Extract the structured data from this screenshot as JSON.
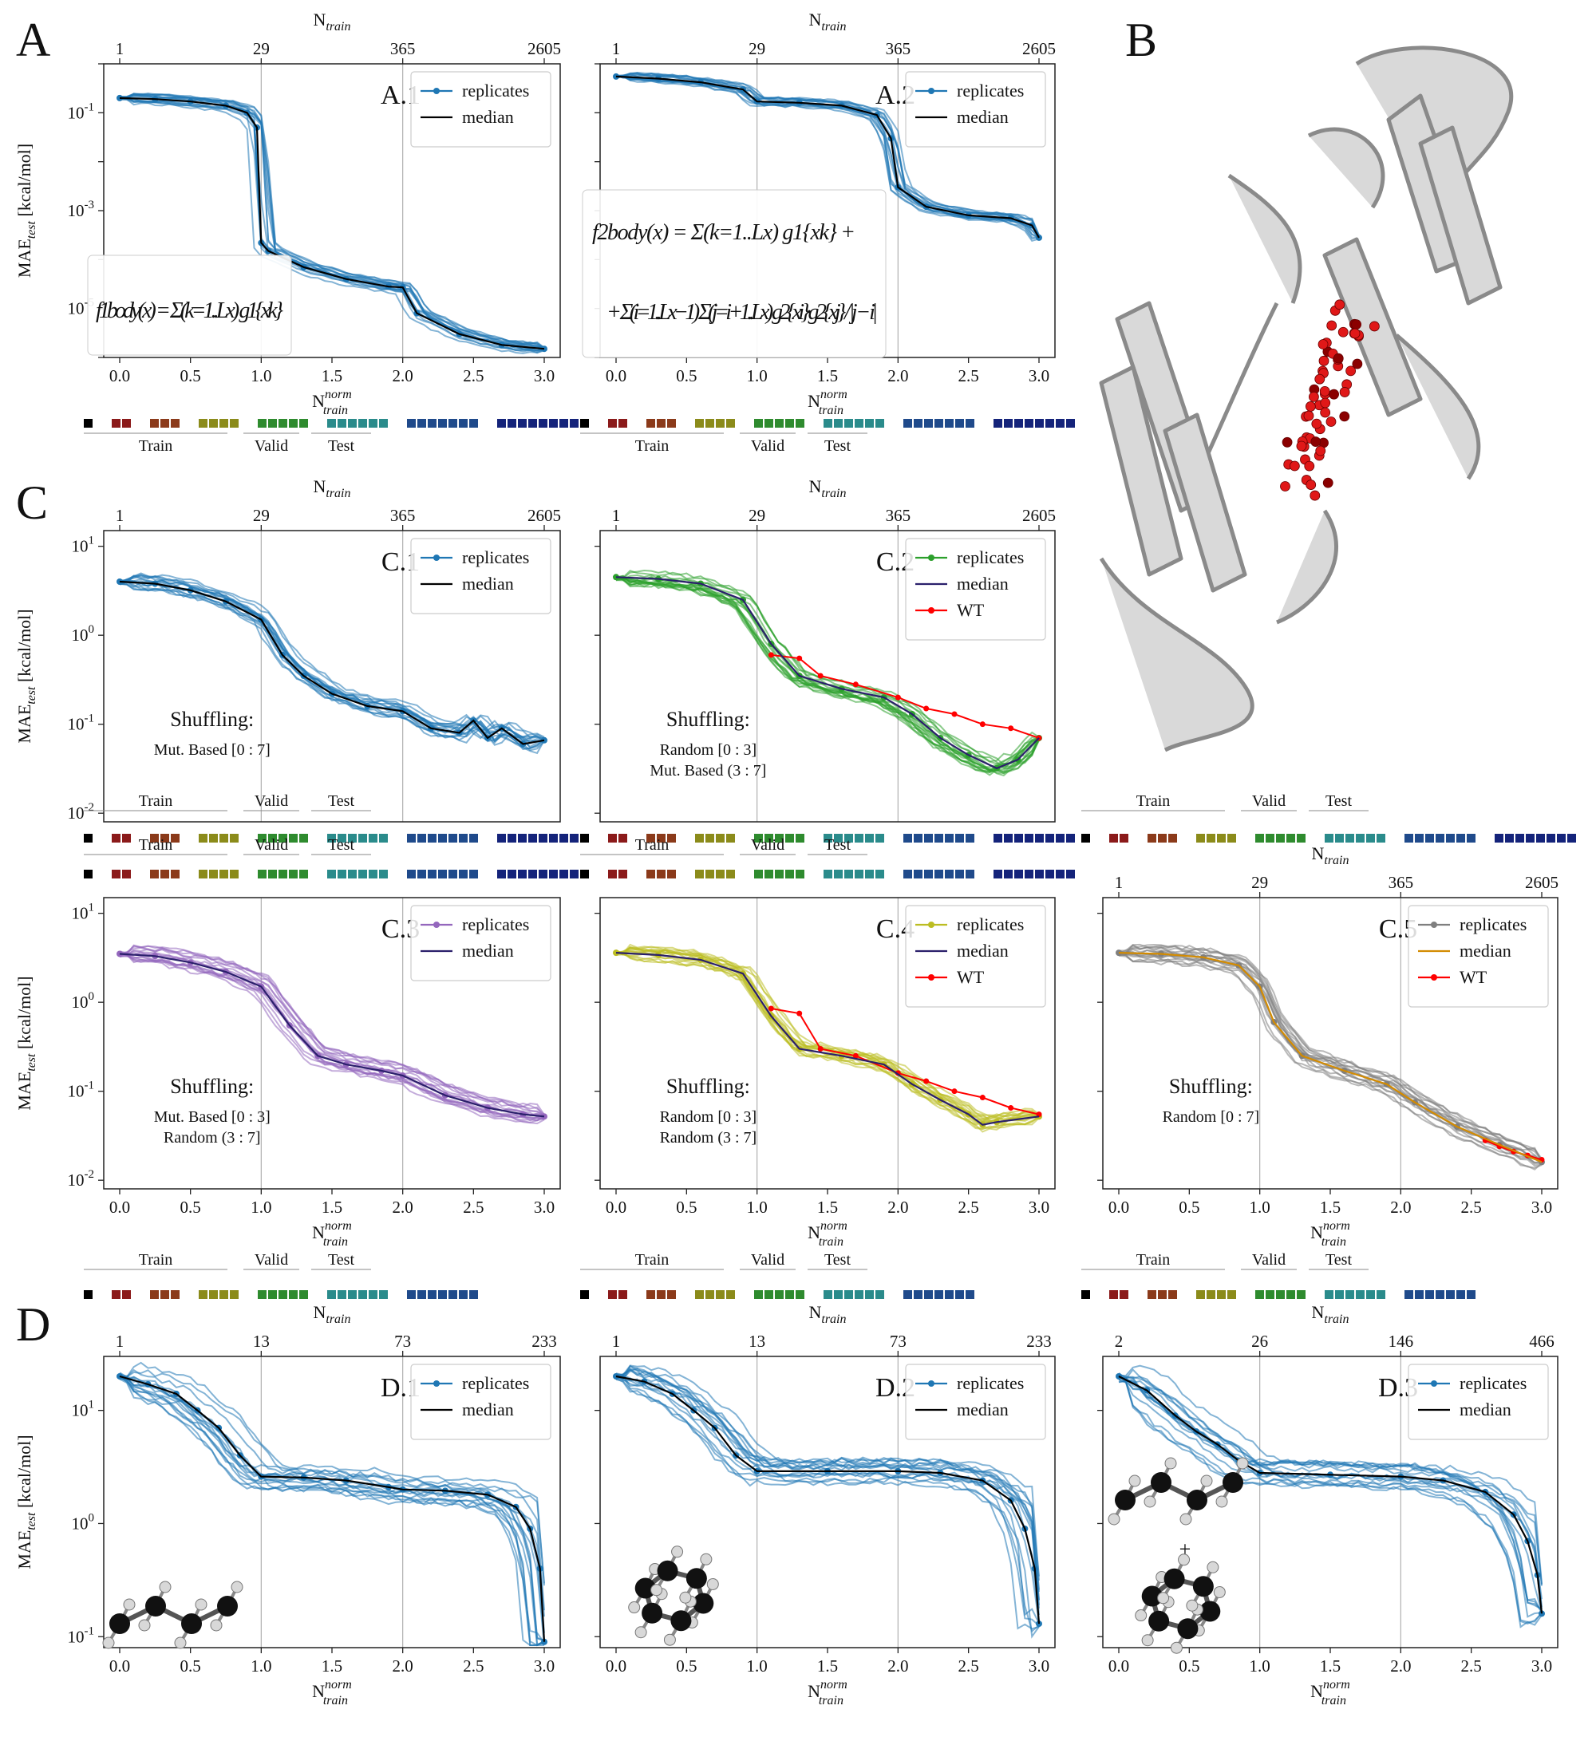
{
  "panel_letters": [
    "A",
    "B",
    "C",
    "D"
  ],
  "axis_labels": {
    "top": "N",
    "top_sub": "train",
    "bottom": "N",
    "bottom_sup": "norm",
    "bottom_sub": "train",
    "y": "MAE",
    "y_sub": "test",
    "y_unit": "[kcal/mol]"
  },
  "segment_labels": [
    "Train",
    "Valid",
    "Test"
  ],
  "colors": {
    "blue": "#1f77b4",
    "green": "#2ca02c",
    "purple": "#9467bd",
    "olive": "#bcbd22",
    "gray": "#7f7f7f",
    "red": "#ff0000",
    "navy": "#2a1f6b",
    "orange": "#d38b00",
    "black": "#000000"
  },
  "formulas": {
    "f1": "f1body(x) = Σ(k=1..Lx) g1{xk}",
    "f2": "f2body(x) = Σ(k=1..Lx) g1{xk} + Σ(i=1..Lx−1) Σ(j=i+1..Lx) g2{xi}·g2{xj} / |j − i|"
  },
  "molecule_icons": [
    "butane-molecule-icon",
    "cyclohexane-molecule-icon",
    "butane-plus-cyclohexane-icon"
  ],
  "protein_description_icon": "protein-ribbon-structure-icon",
  "chart_data": [
    {
      "id": "A.1",
      "type": "line",
      "ylog": true,
      "ylim": [
        1e-06,
        1
      ],
      "yticks": [
        "10^-1",
        "10^-3",
        "10^-5"
      ],
      "top_ticks": [
        "1",
        "29",
        "365",
        "2605"
      ],
      "xticks": [
        "0.0",
        "0.5",
        "1.0",
        "1.5",
        "2.0",
        "2.5",
        "3.0"
      ],
      "xlim": [
        0,
        3
      ],
      "legend": [
        "replicates",
        "median"
      ],
      "median": {
        "x": [
          0,
          0.25,
          0.5,
          0.75,
          0.9,
          0.97,
          1.0,
          1.05,
          1.3,
          1.6,
          1.9,
          2.0,
          2.1,
          2.4,
          2.7,
          3.0
        ],
        "y": [
          0.2,
          0.19,
          0.17,
          0.14,
          0.1,
          0.05,
          0.00022,
          0.00015,
          7e-05,
          4e-05,
          2.8e-05,
          2.7e-05,
          8e-06,
          3e-06,
          1.8e-06,
          1.5e-06
        ]
      },
      "formula": "f1"
    },
    {
      "id": "A.2",
      "type": "line",
      "ylog": true,
      "ylim": [
        1e-06,
        1
      ],
      "yticks": [],
      "top_ticks": [
        "1",
        "29",
        "365",
        "2605"
      ],
      "xticks": [
        "0.0",
        "0.5",
        "1.0",
        "1.5",
        "2.0",
        "2.5",
        "3.0"
      ],
      "xlim": [
        0,
        3
      ],
      "legend": [
        "replicates",
        "median"
      ],
      "median": {
        "x": [
          0,
          0.3,
          0.6,
          0.9,
          1.0,
          1.3,
          1.6,
          1.85,
          1.95,
          2.0,
          2.2,
          2.5,
          2.8,
          2.95,
          3.0
        ],
        "y": [
          0.55,
          0.5,
          0.42,
          0.3,
          0.17,
          0.16,
          0.14,
          0.09,
          0.03,
          0.003,
          0.0012,
          0.0008,
          0.0007,
          0.0005,
          0.00028
        ]
      },
      "formula": "f2"
    },
    {
      "id": "C.1",
      "type": "line",
      "ylog": true,
      "ylim": [
        0.008,
        15
      ],
      "yticks": [
        "10^1",
        "10^0",
        "10^-1",
        "10^-2"
      ],
      "top_ticks": [
        "1",
        "29",
        "365",
        "2605"
      ],
      "xticks": [],
      "xlim": [
        0,
        3
      ],
      "legend": [
        "replicates",
        "median"
      ],
      "median": {
        "x": [
          0,
          0.25,
          0.5,
          0.75,
          1.0,
          1.15,
          1.3,
          1.5,
          1.75,
          2.0,
          2.2,
          2.4,
          2.5,
          2.6,
          2.7,
          2.85,
          3.0
        ],
        "y": [
          4.0,
          3.8,
          3.2,
          2.4,
          1.5,
          0.6,
          0.35,
          0.22,
          0.16,
          0.14,
          0.09,
          0.08,
          0.11,
          0.07,
          0.09,
          0.06,
          0.066
        ]
      },
      "shuffling": [
        "Shuffling:",
        "Mut. Based [0 : 7]"
      ]
    },
    {
      "id": "C.2",
      "type": "line",
      "ylog": true,
      "ylim": [
        0.008,
        15
      ],
      "yticks": [],
      "top_ticks": [
        "1",
        "29",
        "365",
        "2605"
      ],
      "xticks": [],
      "xlim": [
        0,
        3
      ],
      "legend": [
        "replicates",
        "median",
        "WT"
      ],
      "median": {
        "x": [
          0,
          0.3,
          0.6,
          0.9,
          1.1,
          1.3,
          1.6,
          1.9,
          2.1,
          2.3,
          2.5,
          2.7,
          2.85,
          3.0
        ],
        "y": [
          4.5,
          4.3,
          3.8,
          2.5,
          0.8,
          0.35,
          0.25,
          0.2,
          0.13,
          0.07,
          0.045,
          0.032,
          0.04,
          0.07
        ]
      },
      "wt": {
        "x": [
          1.1,
          1.3,
          1.45,
          1.7,
          2.0,
          2.2,
          2.4,
          2.6,
          2.8,
          3.0
        ],
        "y": [
          0.6,
          0.55,
          0.35,
          0.28,
          0.2,
          0.15,
          0.13,
          0.1,
          0.09,
          0.07
        ]
      },
      "shuffling": [
        "Shuffling:",
        "Random [0 : 3]",
        "Mut. Based (3 : 7]"
      ]
    },
    {
      "id": "C.3",
      "type": "line",
      "ylog": true,
      "ylim": [
        0.008,
        15
      ],
      "yticks": [
        "10^1",
        "10^0",
        "10^-1",
        "10^-2"
      ],
      "top_ticks": [],
      "xticks": [
        "0.0",
        "0.5",
        "1.0",
        "1.5",
        "2.0",
        "2.5",
        "3.0"
      ],
      "xlim": [
        0,
        3
      ],
      "legend": [
        "replicates",
        "median"
      ],
      "median": {
        "x": [
          0,
          0.25,
          0.5,
          0.75,
          1.0,
          1.2,
          1.4,
          1.6,
          1.85,
          2.0,
          2.3,
          2.6,
          2.85,
          3.0
        ],
        "y": [
          3.5,
          3.3,
          2.8,
          2.2,
          1.5,
          0.55,
          0.25,
          0.2,
          0.17,
          0.15,
          0.09,
          0.065,
          0.055,
          0.052
        ]
      },
      "shuffling": [
        "Shuffling:",
        "Mut. Based [0 : 3]",
        "Random (3 : 7]"
      ]
    },
    {
      "id": "C.4",
      "type": "line",
      "ylog": true,
      "ylim": [
        0.008,
        15
      ],
      "yticks": [],
      "top_ticks": [],
      "xticks": [
        "0.0",
        "0.5",
        "1.0",
        "1.5",
        "2.0",
        "2.5",
        "3.0"
      ],
      "xlim": [
        0,
        3
      ],
      "legend": [
        "replicates",
        "median",
        "WT"
      ],
      "median": {
        "x": [
          0,
          0.3,
          0.6,
          0.9,
          1.1,
          1.3,
          1.6,
          1.9,
          2.1,
          2.3,
          2.5,
          2.6,
          2.7,
          3.0
        ],
        "y": [
          3.6,
          3.4,
          3.0,
          2.1,
          0.7,
          0.3,
          0.25,
          0.2,
          0.12,
          0.08,
          0.055,
          0.042,
          0.045,
          0.052
        ]
      },
      "wt": {
        "x": [
          1.1,
          1.3,
          1.45,
          1.7,
          2.0,
          2.2,
          2.4,
          2.6,
          2.8,
          3.0
        ],
        "y": [
          0.85,
          0.75,
          0.3,
          0.25,
          0.16,
          0.13,
          0.1,
          0.085,
          0.065,
          0.055
        ]
      },
      "shuffling": [
        "Shuffling:",
        "Random [0 : 3]",
        "Random (3 : 7]"
      ]
    },
    {
      "id": "C.5",
      "type": "line",
      "ylog": true,
      "ylim": [
        0.008,
        15
      ],
      "yticks": [],
      "top_ticks": [
        "1",
        "29",
        "365",
        "2605"
      ],
      "xticks": [
        "0.0",
        "0.5",
        "1.0",
        "1.5",
        "2.0",
        "2.5",
        "3.0"
      ],
      "xlim": [
        0,
        3
      ],
      "legend": [
        "replicates",
        "median",
        "WT"
      ],
      "median": {
        "x": [
          0,
          0.3,
          0.6,
          0.85,
          1.0,
          1.1,
          1.3,
          1.6,
          1.9,
          2.1,
          2.4,
          2.7,
          3.0
        ],
        "y": [
          3.6,
          3.5,
          3.2,
          2.6,
          1.5,
          0.6,
          0.25,
          0.17,
          0.12,
          0.075,
          0.04,
          0.025,
          0.016
        ]
      },
      "wt": {
        "x": [
          2.6,
          2.7,
          2.8,
          2.9,
          3.0
        ],
        "y": [
          0.028,
          0.024,
          0.021,
          0.019,
          0.017
        ]
      },
      "shuffling": [
        "Shuffling:",
        "Random [0 : 7]"
      ]
    },
    {
      "id": "D.1",
      "type": "line",
      "ylog": true,
      "ylim": [
        0.08,
        30
      ],
      "yticks": [
        "10^1",
        "10^0",
        "10^-1"
      ],
      "top_ticks": [
        "1",
        "13",
        "73",
        "233"
      ],
      "xticks": [
        "0.0",
        "0.5",
        "1.0",
        "1.5",
        "2.0",
        "2.5",
        "3.0"
      ],
      "xlim": [
        0,
        3
      ],
      "legend": [
        "replicates",
        "median"
      ],
      "median": {
        "x": [
          0,
          0.2,
          0.4,
          0.55,
          0.7,
          0.85,
          1.0,
          1.3,
          1.6,
          1.9,
          2.0,
          2.3,
          2.6,
          2.8,
          2.9,
          2.97,
          3.0
        ],
        "y": [
          20,
          17,
          14,
          10,
          7,
          4,
          2.6,
          2.55,
          2.4,
          2.1,
          2.0,
          1.95,
          1.8,
          1.4,
          0.9,
          0.4,
          0.09
        ]
      }
    },
    {
      "id": "D.2",
      "type": "line",
      "ylog": true,
      "ylim": [
        0.08,
        30
      ],
      "yticks": [],
      "top_ticks": [
        "1",
        "13",
        "73",
        "233"
      ],
      "xticks": [
        "0.0",
        "0.5",
        "1.0",
        "1.5",
        "2.0",
        "2.5",
        "3.0"
      ],
      "xlim": [
        0,
        3
      ],
      "legend": [
        "replicates",
        "median"
      ],
      "median": {
        "x": [
          0,
          0.2,
          0.4,
          0.55,
          0.7,
          0.85,
          1.0,
          1.5,
          2.0,
          2.3,
          2.6,
          2.8,
          2.9,
          2.97,
          3.0
        ],
        "y": [
          20,
          18,
          14,
          10,
          7,
          4,
          2.9,
          2.9,
          2.9,
          2.8,
          2.4,
          1.6,
          0.9,
          0.4,
          0.13
        ]
      }
    },
    {
      "id": "D.3",
      "type": "line",
      "ylog": true,
      "ylim": [
        0.08,
        30
      ],
      "yticks": [],
      "top_ticks": [
        "2",
        "26",
        "146",
        "466"
      ],
      "xticks": [
        "0.0",
        "0.5",
        "1.0",
        "1.5",
        "2.0",
        "2.5",
        "3.0"
      ],
      "xlim": [
        0,
        3
      ],
      "legend": [
        "replicates",
        "median"
      ],
      "median": {
        "x": [
          0,
          0.2,
          0.4,
          0.55,
          0.7,
          0.85,
          1.0,
          1.5,
          2.0,
          2.3,
          2.6,
          2.8,
          2.9,
          2.97,
          3.0
        ],
        "y": [
          20,
          15,
          9,
          6.5,
          5,
          3.6,
          2.8,
          2.7,
          2.6,
          2.4,
          1.9,
          1.2,
          0.7,
          0.35,
          0.16
        ]
      }
    }
  ]
}
